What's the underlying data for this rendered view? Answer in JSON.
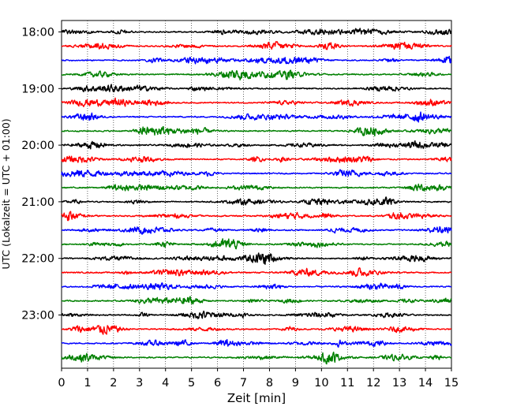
{
  "chart_data": {
    "type": "line",
    "title": "",
    "xlabel": "Zeit  [min]",
    "ylabel": "UTC (Lokalzeit = UTC + 01:00)",
    "xlim": [
      0,
      15
    ],
    "x_ticks": [
      0,
      1,
      2,
      3,
      4,
      5,
      6,
      7,
      8,
      9,
      10,
      11,
      12,
      13,
      14,
      15
    ],
    "y_ticks": [
      "18:00",
      "19:00",
      "20:00",
      "21:00",
      "22:00",
      "23:00"
    ],
    "grid": "vertical dotted",
    "trace_start_hour": 18,
    "trace_minutes_each": 15,
    "trace_count": 24,
    "trace_colors": [
      "#000000",
      "#ff0000",
      "#0000ff",
      "#008000"
    ],
    "trace_amplitude_range": [
      -1,
      1
    ]
  }
}
